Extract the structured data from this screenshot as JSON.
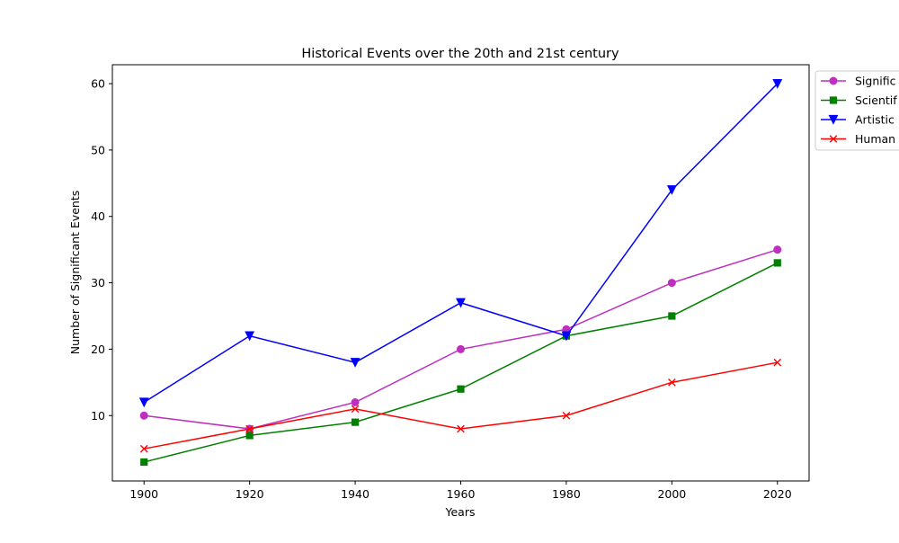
{
  "chart_data": {
    "type": "line",
    "title": "Historical Events over the 20th and 21st century",
    "xlabel": "Years",
    "ylabel": "Number of Significant Events",
    "x": [
      1900,
      1920,
      1940,
      1960,
      1980,
      2000,
      2020
    ],
    "xlim": [
      1894,
      2026
    ],
    "ylim": [
      0.15,
      62.85
    ],
    "xticks": [
      1900,
      1920,
      1940,
      1960,
      1980,
      2000,
      2020
    ],
    "yticks": [
      10,
      20,
      30,
      40,
      50,
      60
    ],
    "grid": false,
    "legend_position": "outside-right-top",
    "series": [
      {
        "name": "Signific",
        "values": [
          10,
          8,
          12,
          20,
          23,
          30,
          35
        ],
        "color": "#bf2fbf",
        "marker": "circle"
      },
      {
        "name": "Scientif",
        "values": [
          3,
          7,
          9,
          14,
          22,
          25,
          33
        ],
        "color": "#008000",
        "marker": "square"
      },
      {
        "name": "Artistic",
        "values": [
          12,
          22,
          18,
          27,
          22,
          44,
          60
        ],
        "color": "#0000ff",
        "marker": "triangle-down"
      },
      {
        "name": "Human",
        "values": [
          5,
          8,
          11,
          8,
          10,
          15,
          18
        ],
        "color": "#ff0000",
        "marker": "x"
      }
    ]
  }
}
